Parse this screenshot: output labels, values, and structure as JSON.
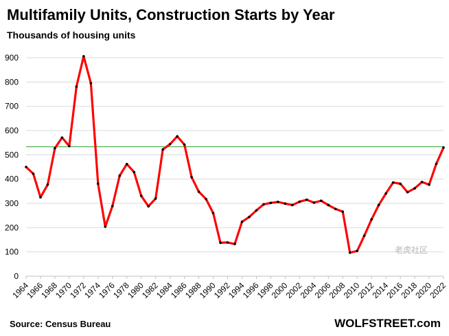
{
  "chart_data": {
    "type": "line",
    "title": "Multifamily Units, Construction Starts by Year",
    "subtitle": "Thousands of housing units",
    "xlabel": "",
    "ylabel": "",
    "source": "Source: Census Bureau",
    "brand": "WOLFSTREET.com",
    "watermark": "老虎社区",
    "ylim": [
      0,
      900
    ],
    "yticks": [
      "0",
      "100",
      "200",
      "300",
      "400",
      "500",
      "600",
      "700",
      "800",
      "900"
    ],
    "xticks": [
      "1964",
      "1966",
      "1968",
      "1970",
      "1972",
      "1974",
      "1976",
      "1978",
      "1980",
      "1982",
      "1984",
      "1986",
      "1988",
      "1990",
      "1992",
      "1994",
      "1996",
      "1998",
      "2000",
      "2002",
      "2004",
      "2006",
      "2008",
      "2010",
      "2012",
      "2014",
      "2016",
      "2018",
      "2020",
      "2022"
    ],
    "grid": true,
    "legend": "none",
    "reference_line": {
      "value": 533,
      "color": "#2ca02c"
    },
    "series": [
      {
        "color": "#ff0000",
        "marker_color": "#000000",
        "x": [
          1964,
          1965,
          1966,
          1967,
          1968,
          1969,
          1970,
          1971,
          1972,
          1973,
          1974,
          1975,
          1976,
          1977,
          1978,
          1979,
          1980,
          1981,
          1982,
          1983,
          1984,
          1985,
          1986,
          1987,
          1988,
          1989,
          1990,
          1991,
          1992,
          1993,
          1994,
          1995,
          1996,
          1997,
          1998,
          1999,
          2000,
          2001,
          2002,
          2003,
          2004,
          2005,
          2006,
          2007,
          2008,
          2009,
          2010,
          2011,
          2012,
          2013,
          2014,
          2015,
          2016,
          2017,
          2018,
          2019,
          2020,
          2021,
          2022
        ],
        "values": [
          450,
          422,
          325,
          377,
          527,
          571,
          536,
          781,
          906,
          795,
          381,
          204,
          289,
          414,
          462,
          429,
          331,
          288,
          320,
          522,
          544,
          576,
          542,
          408,
          348,
          318,
          260,
          138,
          139,
          133,
          224,
          244,
          271,
          296,
          302,
          306,
          299,
          293,
          307,
          315,
          303,
          311,
          293,
          277,
          266,
          97,
          104,
          167,
          234,
          293,
          341,
          386,
          381,
          346,
          362,
          388,
          377,
          463,
          530
        ]
      }
    ]
  }
}
